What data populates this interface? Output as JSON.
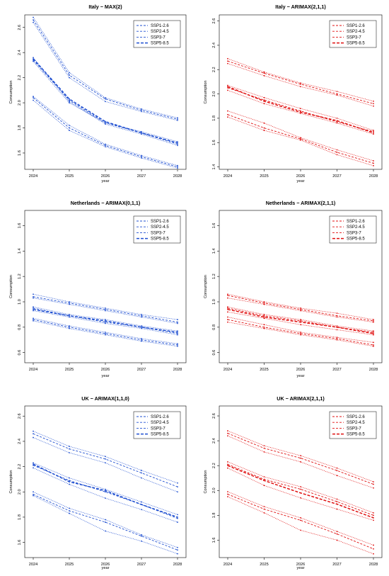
{
  "figure": {
    "legend_labels": [
      "SSP1-2.6",
      "SSP2-4.5",
      "SSP3-7",
      "SSP5-8.5"
    ],
    "colors": {
      "blue": "#1f4fd1",
      "red": "#e01010"
    }
  },
  "chart_data": [
    {
      "type": "line",
      "title": "Italy − MAX(2)",
      "xlabel": "year",
      "ylabel": "Consumption",
      "x": [
        2024,
        2025,
        2026,
        2027,
        2028
      ],
      "yticks": [
        1.6,
        1.8,
        2.0,
        2.2,
        2.4,
        2.6
      ],
      "ylim": [
        1.47,
        2.7
      ],
      "color": "blue",
      "legend_position": "top-right",
      "series": [
        {
          "name": "SSP1-2.6",
          "values": [
            2.66,
            2.22,
            2.03,
            1.94,
            1.87
          ],
          "style": "dash"
        },
        {
          "name": "SSP2-4.5",
          "values": [
            2.34,
            2.02,
            1.84,
            1.76,
            1.67
          ],
          "style": "dash"
        },
        {
          "name": "SSP3-7",
          "values": [
            2.04,
            1.8,
            1.66,
            1.57,
            1.49
          ],
          "style": "dash"
        },
        {
          "name": "SSP5-8.5",
          "values": [
            2.35,
            2.03,
            1.85,
            1.76,
            1.68
          ],
          "style": "bold-dash"
        },
        {
          "name": "",
          "values": [
            2.68,
            2.24,
            2.04,
            1.95,
            1.88
          ],
          "style": "dot"
        },
        {
          "name": "",
          "values": [
            2.64,
            2.2,
            2.01,
            1.93,
            1.86
          ],
          "style": "dot"
        },
        {
          "name": "",
          "values": [
            2.36,
            2.01,
            1.83,
            1.75,
            1.66
          ],
          "style": "dot"
        },
        {
          "name": "",
          "values": [
            2.33,
            2.0,
            1.84,
            1.77,
            1.69
          ],
          "style": "dot"
        },
        {
          "name": "",
          "values": [
            2.05,
            1.82,
            1.67,
            1.58,
            1.5
          ],
          "style": "dot"
        },
        {
          "name": "",
          "values": [
            2.02,
            1.78,
            1.65,
            1.56,
            1.48
          ],
          "style": "dot"
        }
      ]
    },
    {
      "type": "line",
      "title": "Italy − ARIMAX(2,1,1)",
      "xlabel": "year",
      "ylabel": "Consumption",
      "x": [
        2024,
        2025,
        2026,
        2027,
        2028
      ],
      "yticks": [
        1.4,
        1.6,
        1.8,
        2.0,
        2.2,
        2.4,
        2.6
      ],
      "ylim": [
        1.38,
        2.65
      ],
      "color": "red",
      "legend_position": "top-right",
      "series": [
        {
          "name": "SSP1-2.6",
          "values": [
            2.27,
            2.17,
            2.08,
            2.0,
            1.92
          ],
          "style": "dash"
        },
        {
          "name": "SSP2-4.5",
          "values": [
            2.05,
            1.95,
            1.86,
            1.77,
            1.69
          ],
          "style": "dash"
        },
        {
          "name": "SSP3-7",
          "values": [
            1.83,
            1.72,
            1.63,
            1.52,
            1.43
          ],
          "style": "dash"
        },
        {
          "name": "SSP5-8.5",
          "values": [
            2.06,
            1.94,
            1.85,
            1.78,
            1.68
          ],
          "style": "bold-dash"
        },
        {
          "name": "",
          "values": [
            2.29,
            2.18,
            2.09,
            2.02,
            1.94
          ],
          "style": "dot"
        },
        {
          "name": "",
          "values": [
            2.25,
            2.15,
            2.06,
            1.99,
            1.9
          ],
          "style": "dot"
        },
        {
          "name": "",
          "values": [
            2.07,
            1.97,
            1.88,
            1.8,
            1.7
          ],
          "style": "dot"
        },
        {
          "name": "",
          "values": [
            2.03,
            1.92,
            1.84,
            1.76,
            1.67
          ],
          "style": "dot"
        },
        {
          "name": "",
          "values": [
            1.86,
            1.76,
            1.64,
            1.54,
            1.45
          ],
          "style": "dot"
        },
        {
          "name": "",
          "values": [
            1.81,
            1.7,
            1.62,
            1.5,
            1.41
          ],
          "style": "dot"
        }
      ]
    },
    {
      "type": "line",
      "title": "Netherlands − ARIMAX(0,1,1)",
      "xlabel": "year",
      "ylabel": "Consumption",
      "x": [
        2024,
        2025,
        2026,
        2027,
        2028
      ],
      "yticks": [
        0.6,
        0.8,
        1.0,
        1.2,
        1.4,
        1.6
      ],
      "ylim": [
        0.52,
        1.72
      ],
      "color": "blue",
      "legend_position": "top-right",
      "series": [
        {
          "name": "SSP1-2.6",
          "values": [
            1.04,
            0.99,
            0.94,
            0.89,
            0.84
          ],
          "style": "dash"
        },
        {
          "name": "SSP2-4.5",
          "values": [
            0.95,
            0.89,
            0.84,
            0.8,
            0.75
          ],
          "style": "dash"
        },
        {
          "name": "SSP3-7",
          "values": [
            0.86,
            0.8,
            0.75,
            0.7,
            0.66
          ],
          "style": "dash"
        },
        {
          "name": "SSP5-8.5",
          "values": [
            0.94,
            0.89,
            0.85,
            0.8,
            0.76
          ],
          "style": "bold-dash"
        },
        {
          "name": "",
          "values": [
            1.06,
            1.0,
            0.95,
            0.9,
            0.86
          ],
          "style": "dot"
        },
        {
          "name": "",
          "values": [
            1.03,
            0.98,
            0.93,
            0.88,
            0.83
          ],
          "style": "dot"
        },
        {
          "name": "",
          "values": [
            0.96,
            0.9,
            0.86,
            0.81,
            0.77
          ],
          "style": "dot"
        },
        {
          "name": "",
          "values": [
            0.93,
            0.88,
            0.83,
            0.79,
            0.74
          ],
          "style": "dot"
        },
        {
          "name": "",
          "values": [
            0.87,
            0.81,
            0.76,
            0.71,
            0.67
          ],
          "style": "dot"
        },
        {
          "name": "",
          "values": [
            0.85,
            0.79,
            0.74,
            0.69,
            0.65
          ],
          "style": "dot"
        }
      ]
    },
    {
      "type": "line",
      "title": "Netherlands − ARIMAX(2,1,1)",
      "xlabel": "year",
      "ylabel": "Consumption",
      "x": [
        2024,
        2025,
        2026,
        2027,
        2028
      ],
      "yticks": [
        0.6,
        0.8,
        1.0,
        1.2,
        1.4,
        1.6
      ],
      "ylim": [
        0.52,
        1.72
      ],
      "color": "red",
      "legend_position": "top-right",
      "series": [
        {
          "name": "SSP1-2.6",
          "values": [
            1.05,
            0.99,
            0.94,
            0.89,
            0.85
          ],
          "style": "dash"
        },
        {
          "name": "SSP2-4.5",
          "values": [
            0.95,
            0.89,
            0.85,
            0.8,
            0.76
          ],
          "style": "dash"
        },
        {
          "name": "SSP3-7",
          "values": [
            0.86,
            0.8,
            0.75,
            0.71,
            0.66
          ],
          "style": "dash"
        },
        {
          "name": "SSP5-8.5",
          "values": [
            0.94,
            0.88,
            0.84,
            0.8,
            0.75
          ],
          "style": "bold-dash"
        },
        {
          "name": "",
          "values": [
            1.06,
            1.0,
            0.95,
            0.91,
            0.86
          ],
          "style": "dot"
        },
        {
          "name": "",
          "values": [
            1.03,
            0.98,
            0.93,
            0.88,
            0.84
          ],
          "style": "dot"
        },
        {
          "name": "",
          "values": [
            0.96,
            0.9,
            0.86,
            0.81,
            0.77
          ],
          "style": "dot"
        },
        {
          "name": "",
          "values": [
            0.92,
            0.87,
            0.82,
            0.78,
            0.74
          ],
          "style": "dot"
        },
        {
          "name": "",
          "values": [
            0.88,
            0.82,
            0.76,
            0.72,
            0.68
          ],
          "style": "dot"
        },
        {
          "name": "",
          "values": [
            0.84,
            0.79,
            0.74,
            0.7,
            0.65
          ],
          "style": "dot"
        }
      ]
    },
    {
      "type": "line",
      "title": "UK − ARIMAX(1,1,0)",
      "xlabel": "year",
      "ylabel": "Consumption",
      "x": [
        2024,
        2025,
        2026,
        2027,
        2028
      ],
      "yticks": [
        1.6,
        1.8,
        2.0,
        2.2,
        2.4,
        2.6
      ],
      "ylim": [
        1.48,
        2.68
      ],
      "color": "blue",
      "legend_position": "top-right",
      "series": [
        {
          "name": "SSP1-2.6",
          "values": [
            2.46,
            2.34,
            2.26,
            2.15,
            2.04
          ],
          "style": "dash"
        },
        {
          "name": "SSP2-4.5",
          "values": [
            2.21,
            2.09,
            2.0,
            1.9,
            1.79
          ],
          "style": "dash"
        },
        {
          "name": "SSP3-7",
          "values": [
            1.98,
            1.85,
            1.76,
            1.65,
            1.54
          ],
          "style": "dash"
        },
        {
          "name": "SSP5-8.5",
          "values": [
            2.22,
            2.08,
            2.01,
            1.9,
            1.8
          ],
          "style": "bold-dash"
        },
        {
          "name": "",
          "values": [
            2.48,
            2.36,
            2.28,
            2.17,
            2.07
          ],
          "style": "dot"
        },
        {
          "name": "",
          "values": [
            2.43,
            2.31,
            2.23,
            2.11,
            2.0
          ],
          "style": "dot"
        },
        {
          "name": "",
          "values": [
            2.23,
            2.11,
            2.02,
            1.92,
            1.82
          ],
          "style": "dot"
        },
        {
          "name": "",
          "values": [
            2.19,
            2.06,
            1.95,
            1.86,
            1.76
          ],
          "style": "dot"
        },
        {
          "name": "",
          "values": [
            2.0,
            1.87,
            1.78,
            1.66,
            1.56
          ],
          "style": "dot"
        },
        {
          "name": "",
          "values": [
            1.97,
            1.83,
            1.69,
            1.61,
            1.51
          ],
          "style": "dot"
        }
      ]
    },
    {
      "type": "line",
      "title": "UK − ARIMAX(2,1,1)",
      "xlabel": "year",
      "ylabel": "Consumption",
      "x": [
        2024,
        2025,
        2026,
        2027,
        2028
      ],
      "yticks": [
        1.6,
        1.8,
        2.0,
        2.2,
        2.4,
        2.6
      ],
      "ylim": [
        1.46,
        2.68
      ],
      "color": "red",
      "legend_position": "top-right",
      "series": [
        {
          "name": "SSP1-2.6",
          "values": [
            2.46,
            2.34,
            2.26,
            2.16,
            2.05
          ],
          "style": "dash"
        },
        {
          "name": "SSP2-4.5",
          "values": [
            2.21,
            2.09,
            2.01,
            1.91,
            1.8
          ],
          "style": "dash"
        },
        {
          "name": "SSP3-7",
          "values": [
            1.97,
            1.85,
            1.76,
            1.65,
            1.53
          ],
          "style": "dash"
        },
        {
          "name": "SSP5-8.5",
          "values": [
            2.2,
            2.08,
            1.98,
            1.89,
            1.78
          ],
          "style": "bold-dash"
        },
        {
          "name": "",
          "values": [
            2.48,
            2.36,
            2.28,
            2.18,
            2.07
          ],
          "style": "dot"
        },
        {
          "name": "",
          "values": [
            2.44,
            2.31,
            2.23,
            2.12,
            2.02
          ],
          "style": "dot"
        },
        {
          "name": "",
          "values": [
            2.23,
            2.11,
            2.03,
            1.93,
            1.82
          ],
          "style": "dot"
        },
        {
          "name": "",
          "values": [
            2.18,
            2.04,
            1.94,
            1.85,
            1.76
          ],
          "style": "dot"
        },
        {
          "name": "",
          "values": [
            1.99,
            1.87,
            1.78,
            1.67,
            1.56
          ],
          "style": "dot"
        },
        {
          "name": "",
          "values": [
            1.95,
            1.82,
            1.68,
            1.6,
            1.49
          ],
          "style": "dot"
        }
      ]
    }
  ]
}
